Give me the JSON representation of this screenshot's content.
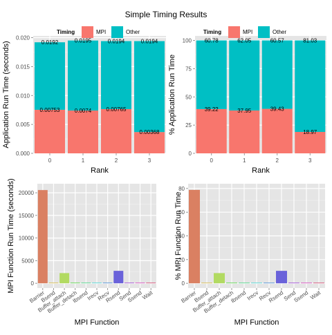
{
  "title": "Simple Timing Results",
  "colors": {
    "mpi": "#F8766D",
    "other": "#00BFC4",
    "panel_bg": "#E5E5E5",
    "grid": "#FFFFFF",
    "tick_text": "#4D4D4D",
    "label_text": "#000000"
  },
  "chart_data": [
    {
      "type": "bar",
      "stacked": true,
      "title": "",
      "xlabel": "Rank",
      "ylabel": "Application Run Time (seconds)",
      "categories": [
        "0",
        "1",
        "2",
        "3"
      ],
      "ylim": [
        0,
        0.0203
      ],
      "yticks": [
        0.0,
        0.005,
        0.01,
        0.015,
        0.02
      ],
      "ytick_labels": [
        "0.000",
        "0.005",
        "0.010",
        "0.015",
        "0.020"
      ],
      "legend": {
        "title": "Timing",
        "placement": "top",
        "entries": [
          "MPI",
          "Other"
        ]
      },
      "series": [
        {
          "name": "MPI",
          "values": [
            0.00753,
            0.0074,
            0.00765,
            0.00368
          ],
          "labels": [
            "0.00753",
            "0.0074",
            "0.00765",
            "0.00368"
          ]
        },
        {
          "name": "Other",
          "values": [
            0.01167,
            0.0121,
            0.01175,
            0.01572
          ],
          "labels": [
            "0.0192",
            "0.0195",
            "0.0194",
            "0.0194"
          ]
        }
      ]
    },
    {
      "type": "bar",
      "stacked": true,
      "title": "",
      "xlabel": "Rank",
      "ylabel": "% Application Run Time",
      "categories": [
        "0",
        "1",
        "2",
        "3"
      ],
      "ylim": [
        0,
        104
      ],
      "yticks": [
        0,
        25,
        50,
        75,
        100
      ],
      "ytick_labels": [
        "0",
        "25",
        "50",
        "75",
        "100"
      ],
      "legend": {
        "title": "Timing",
        "placement": "top",
        "entries": [
          "MPI",
          "Other"
        ]
      },
      "series": [
        {
          "name": "MPI",
          "values": [
            39.22,
            37.95,
            39.43,
            18.97
          ],
          "labels": [
            "39.22",
            "37.95",
            "39.43",
            "18.97"
          ]
        },
        {
          "name": "Other",
          "values": [
            60.78,
            62.05,
            60.57,
            81.03
          ],
          "labels": [
            "60.78",
            "62.05",
            "60.57",
            "81.03"
          ]
        }
      ]
    },
    {
      "type": "bar",
      "stacked": false,
      "title": "",
      "xlabel": "MPI Function",
      "ylabel": "MPI Function Run Time (seconds)",
      "categories": [
        "Barrier",
        "Bsend",
        "Buffer_attach",
        "Buffer_detach",
        "Ibsend",
        "Irecv",
        "Recv",
        "Rsend",
        "Send",
        "Ssend",
        "Wait"
      ],
      "values": [
        20600,
        20,
        2250,
        50,
        30,
        10,
        80,
        2750,
        20,
        40,
        60
      ],
      "ylim": [
        -1050,
        22000
      ],
      "yticks": [
        0,
        5000,
        10000,
        15000,
        20000
      ],
      "ytick_labels": [
        "0",
        "5000",
        "10000",
        "15000",
        "20000"
      ]
    },
    {
      "type": "bar",
      "stacked": false,
      "title": "",
      "xlabel": "MPI Function",
      "ylabel": "% MPI Function Run Time",
      "categories": [
        "Barrier",
        "Bsend",
        "Buffer_attach",
        "Buffer_detach",
        "Ibsend",
        "Irecv",
        "Recv",
        "Rsend",
        "Send",
        "Ssend",
        "Wait"
      ],
      "values": [
        78.8,
        0.1,
        8.6,
        0.2,
        0.1,
        0.04,
        0.3,
        10.5,
        0.08,
        0.15,
        0.2
      ],
      "ylim": [
        -4,
        84
      ],
      "yticks": [
        0,
        20,
        40,
        60,
        80
      ],
      "ytick_labels": [
        "0",
        "20",
        "40",
        "60",
        "80"
      ]
    }
  ]
}
